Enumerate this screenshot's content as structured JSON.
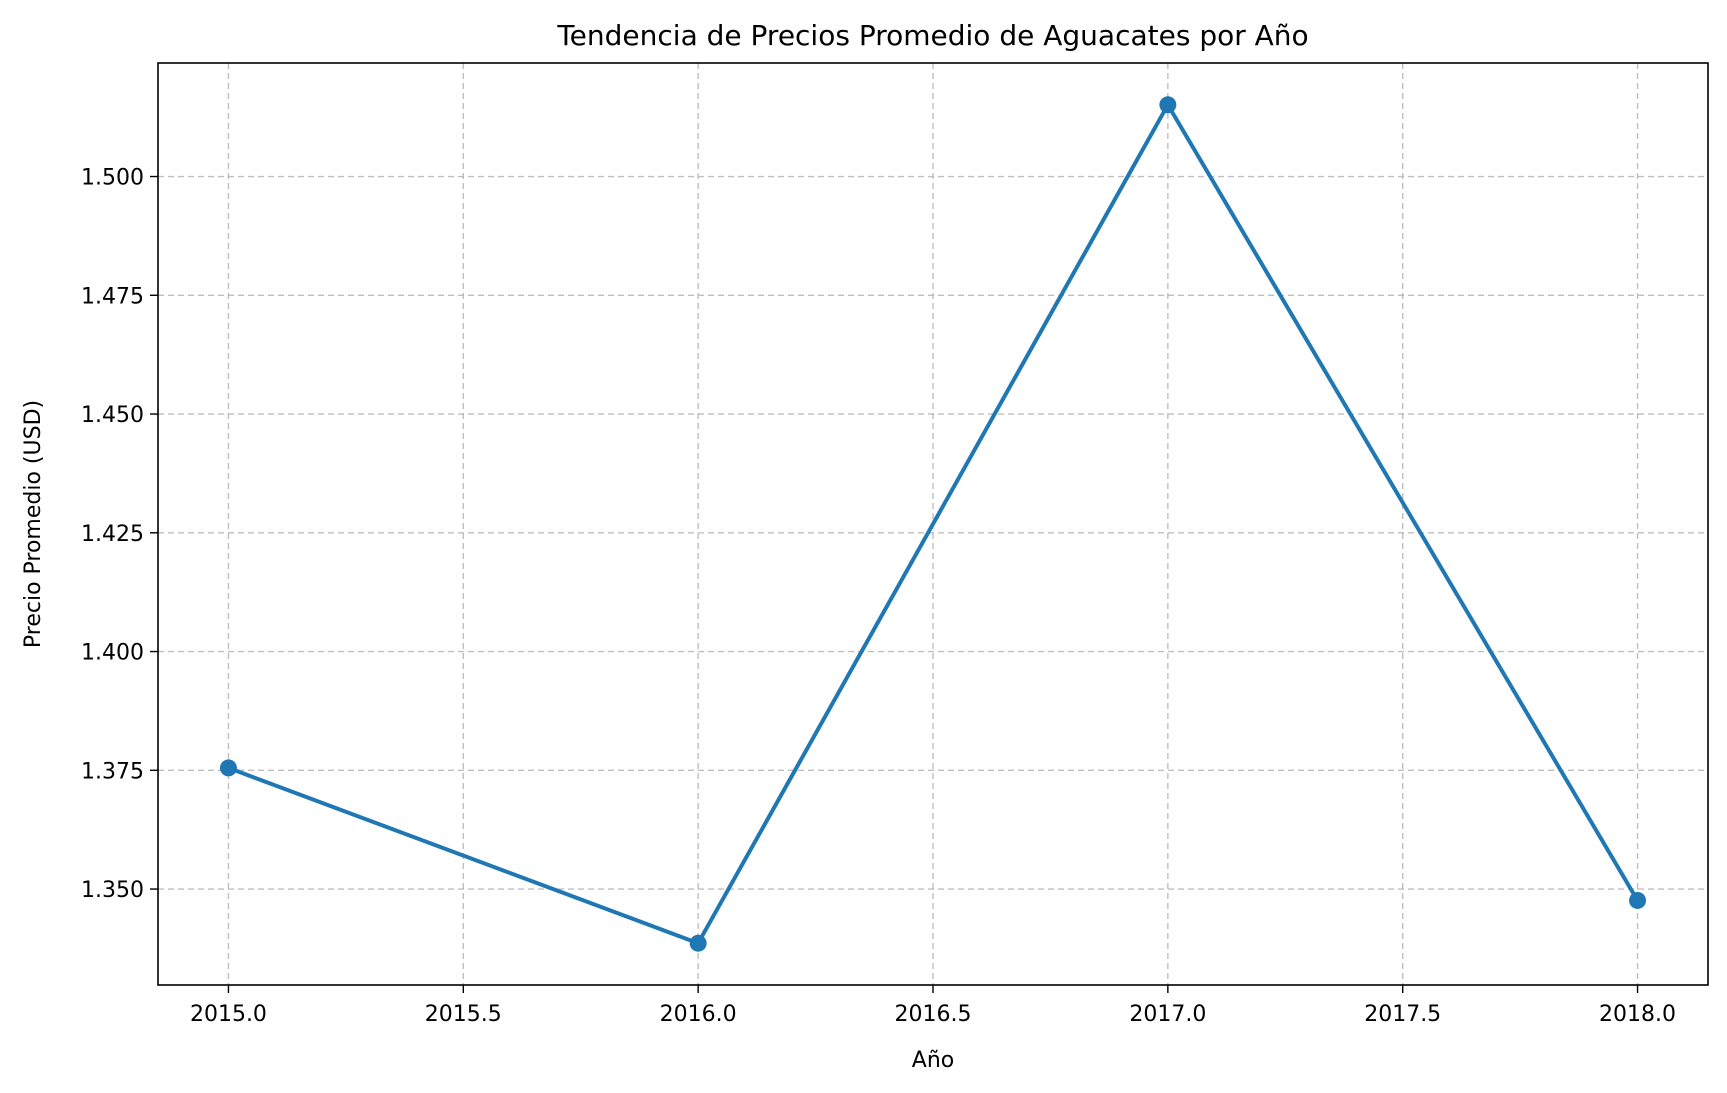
{
  "chart_data": {
    "type": "line",
    "title": "Tendencia de Precios Promedio de Aguacates por Año",
    "xlabel": "Año",
    "ylabel": "Precio Promedio (USD)",
    "x": [
      2015,
      2016,
      2017,
      2018
    ],
    "series": [
      {
        "values": [
          1.3755,
          1.3386,
          1.5151,
          1.3476
        ],
        "color": "#1f77b4",
        "marker": "circle"
      }
    ],
    "xlim": [
      2014.85,
      2018.15
    ],
    "ylim": [
      1.3298,
      1.5239
    ],
    "xticks": [
      2015.0,
      2015.5,
      2016.0,
      2016.5,
      2017.0,
      2017.5,
      2018.0
    ],
    "xtick_labels": [
      "2015.0",
      "2015.5",
      "2016.0",
      "2016.5",
      "2017.0",
      "2017.5",
      "2018.0"
    ],
    "yticks": [
      1.35,
      1.375,
      1.4,
      1.425,
      1.45,
      1.475,
      1.5
    ],
    "ytick_labels": [
      "1.350",
      "1.375",
      "1.400",
      "1.425",
      "1.450",
      "1.475",
      "1.500"
    ],
    "grid": true,
    "grid_style": "dashed",
    "grid_color": "#b0b0b0",
    "legend": "none"
  }
}
